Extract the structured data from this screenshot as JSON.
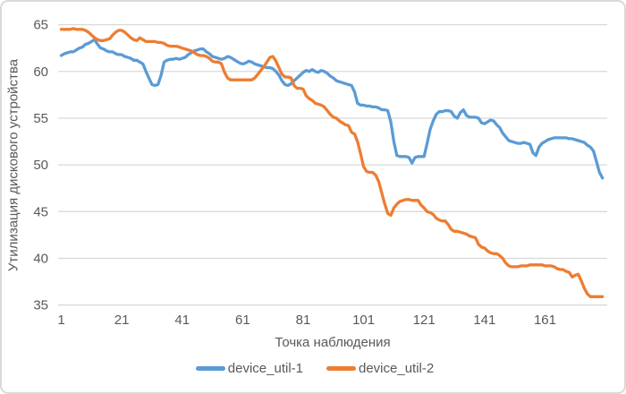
{
  "chart_data": {
    "type": "line",
    "title": "",
    "xlabel": "Точка наблюдения",
    "ylabel": "Утилизация дискового устройства",
    "x_ticks": [
      1,
      21,
      41,
      61,
      81,
      101,
      121,
      141,
      161
    ],
    "y_ticks": [
      35,
      40,
      45,
      50,
      55,
      60,
      65
    ],
    "xlim": [
      1,
      180
    ],
    "ylim": [
      35,
      65
    ],
    "x_start": 1,
    "x_step": 1,
    "grid": "horizontal",
    "legend_position": "bottom",
    "colors": {
      "series1": "#5B9BD5",
      "series2": "#ED7D31",
      "text": "#595959",
      "gridline": "#D9D9D9",
      "border": "#D9D9D9",
      "background": "#FFFFFF"
    },
    "series": [
      {
        "name": "device_util-1",
        "color": "#5B9BD5",
        "values": [
          61.7,
          61.9,
          62.0,
          62.1,
          62.1,
          62.3,
          62.5,
          62.6,
          62.9,
          63.0,
          63.2,
          63.4,
          62.9,
          62.5,
          62.4,
          62.2,
          62.1,
          62.1,
          61.9,
          61.8,
          61.8,
          61.6,
          61.5,
          61.4,
          61.2,
          61.2,
          61.0,
          60.8,
          60.0,
          59.3,
          58.6,
          58.5,
          58.6,
          59.6,
          61.0,
          61.2,
          61.3,
          61.3,
          61.4,
          61.3,
          61.4,
          61.5,
          61.8,
          62.0,
          62.2,
          62.3,
          62.4,
          62.4,
          62.1,
          61.9,
          61.6,
          61.5,
          61.4,
          61.3,
          61.4,
          61.6,
          61.5,
          61.3,
          61.1,
          60.9,
          60.8,
          60.9,
          61.1,
          61.0,
          60.8,
          60.7,
          60.6,
          60.5,
          60.4,
          60.4,
          60.3,
          60.0,
          59.6,
          59.0,
          58.6,
          58.5,
          58.7,
          59.0,
          59.3,
          59.6,
          59.9,
          60.1,
          60.0,
          60.2,
          60.0,
          59.9,
          60.1,
          60.0,
          59.8,
          59.5,
          59.3,
          59.0,
          58.9,
          58.8,
          58.7,
          58.6,
          58.5,
          57.8,
          56.6,
          56.4,
          56.4,
          56.3,
          56.3,
          56.2,
          56.2,
          56.1,
          55.9,
          55.9,
          55.8,
          54.6,
          52.5,
          51.0,
          50.9,
          50.9,
          50.9,
          50.8,
          50.2,
          50.8,
          50.9,
          50.9,
          50.9,
          52.3,
          53.8,
          54.7,
          55.4,
          55.7,
          55.7,
          55.8,
          55.8,
          55.7,
          55.2,
          55.0,
          55.6,
          55.9,
          55.3,
          55.1,
          55.1,
          55.1,
          55.0,
          54.5,
          54.4,
          54.6,
          54.8,
          54.7,
          54.3,
          54.0,
          53.4,
          53.0,
          52.6,
          52.5,
          52.4,
          52.3,
          52.3,
          52.4,
          52.3,
          52.2,
          51.3,
          51.0,
          51.9,
          52.3,
          52.5,
          52.7,
          52.8,
          52.9,
          52.9,
          52.9,
          52.9,
          52.9,
          52.8,
          52.8,
          52.7,
          52.6,
          52.5,
          52.4,
          52.1,
          51.9,
          51.5,
          50.4,
          49.2,
          48.6
        ]
      },
      {
        "name": "device_util-2",
        "color": "#ED7D31",
        "values": [
          64.5,
          64.5,
          64.5,
          64.5,
          64.6,
          64.5,
          64.5,
          64.5,
          64.4,
          64.2,
          63.9,
          63.6,
          63.4,
          63.3,
          63.3,
          63.4,
          63.5,
          63.9,
          64.2,
          64.4,
          64.4,
          64.2,
          63.9,
          63.6,
          63.4,
          63.3,
          63.6,
          63.4,
          63.2,
          63.2,
          63.2,
          63.2,
          63.1,
          63.1,
          63.0,
          62.8,
          62.7,
          62.7,
          62.7,
          62.6,
          62.5,
          62.4,
          62.3,
          62.2,
          62.0,
          61.8,
          61.7,
          61.7,
          61.6,
          61.4,
          61.1,
          61.0,
          61.0,
          60.8,
          59.9,
          59.3,
          59.1,
          59.1,
          59.1,
          59.1,
          59.1,
          59.1,
          59.1,
          59.1,
          59.3,
          59.7,
          60.1,
          60.5,
          61.0,
          61.5,
          61.6,
          61.1,
          60.4,
          59.7,
          59.4,
          59.4,
          59.3,
          58.5,
          58.2,
          58.2,
          58.1,
          57.4,
          57.1,
          56.9,
          56.6,
          56.5,
          56.4,
          56.2,
          55.8,
          55.4,
          55.1,
          55.0,
          54.7,
          54.5,
          54.3,
          54.2,
          53.5,
          53.3,
          52.5,
          51.2,
          49.8,
          49.3,
          49.2,
          49.2,
          48.9,
          48.2,
          47.0,
          45.8,
          44.8,
          44.6,
          45.4,
          45.8,
          46.1,
          46.2,
          46.3,
          46.3,
          46.2,
          46.2,
          46.2,
          45.7,
          45.4,
          45.0,
          44.9,
          44.7,
          44.3,
          44.1,
          44.0,
          44.0,
          43.6,
          43.1,
          42.9,
          42.9,
          42.8,
          42.7,
          42.6,
          42.4,
          42.3,
          42.2,
          41.5,
          41.2,
          41.1,
          40.8,
          40.6,
          40.5,
          40.5,
          40.3,
          40.0,
          39.5,
          39.2,
          39.1,
          39.1,
          39.1,
          39.2,
          39.2,
          39.2,
          39.3,
          39.3,
          39.3,
          39.3,
          39.3,
          39.2,
          39.2,
          39.2,
          39.1,
          38.9,
          38.8,
          38.8,
          38.6,
          38.5,
          38.0,
          38.2,
          38.3,
          37.6,
          36.8,
          36.2,
          35.9,
          35.9,
          35.9,
          35.9,
          35.9
        ]
      }
    ]
  }
}
